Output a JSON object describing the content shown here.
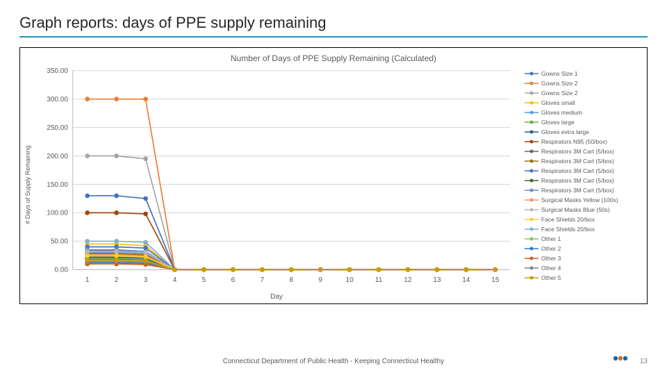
{
  "slide": {
    "title": "Graph reports: days of PPE supply remaining",
    "footer": "Connecticut Department of Public Health - Keeping Connecticut Healthy",
    "page_number": "13",
    "accent_rule_color": "#1e95c3"
  },
  "chart": {
    "type": "line",
    "title": "Number of Days of PPE Supply Remaining (Calculated)",
    "title_fontsize": 12,
    "xlabel": "Day",
    "ylabel": "# Days of Supply Remaining",
    "label_fontsize": 10,
    "background_color": "#ffffff",
    "grid_color": "#d9d9d9",
    "axis_color": "#bfbfbf",
    "x_categories": [
      "1",
      "2",
      "3",
      "4",
      "5",
      "6",
      "7",
      "8",
      "9",
      "10",
      "11",
      "12",
      "13",
      "14",
      "15"
    ],
    "ylim": [
      0,
      350
    ],
    "ytick_step": 50,
    "ytick_format": "0.00",
    "marker_size": 3,
    "line_width": 1.5,
    "series": [
      {
        "name": "Gowns Size 1",
        "color": "#4472c4",
        "values": [
          130,
          130,
          125,
          0,
          0,
          0,
          0,
          0,
          0,
          0,
          0,
          0,
          0,
          0,
          0
        ]
      },
      {
        "name": "Gowns Size 2",
        "color": "#ed7d31",
        "values": [
          300,
          300,
          300,
          0,
          0,
          0,
          0,
          0,
          0,
          0,
          0,
          0,
          0,
          0,
          0
        ]
      },
      {
        "name": "Gowns Size 2",
        "color": "#a5a5a5",
        "values": [
          200,
          200,
          195,
          0,
          0,
          0,
          0,
          0,
          0,
          0,
          0,
          0,
          0,
          0,
          0
        ]
      },
      {
        "name": "Gloves small",
        "color": "#ffc000",
        "values": [
          45,
          45,
          42,
          0,
          0,
          0,
          0,
          0,
          0,
          0,
          0,
          0,
          0,
          0,
          0
        ]
      },
      {
        "name": "Gloves medium",
        "color": "#5b9bd5",
        "values": [
          30,
          30,
          28,
          0,
          0,
          0,
          0,
          0,
          0,
          0,
          0,
          0,
          0,
          0,
          0
        ]
      },
      {
        "name": "Gloves large",
        "color": "#70ad47",
        "values": [
          20,
          20,
          20,
          0,
          0,
          0,
          0,
          0,
          0,
          0,
          0,
          0,
          0,
          0,
          0
        ]
      },
      {
        "name": "Gloves extra large",
        "color": "#255e91",
        "values": [
          22,
          22,
          20,
          0,
          0,
          0,
          0,
          0,
          0,
          0,
          0,
          0,
          0,
          0,
          0
        ]
      },
      {
        "name": "Respirators N95 (50/box)",
        "color": "#9e480e",
        "values": [
          100,
          100,
          98,
          0,
          0,
          0,
          0,
          0,
          0,
          0,
          0,
          0,
          0,
          0,
          0
        ]
      },
      {
        "name": "Respirators 3M Cart (5/box)",
        "color": "#636363",
        "values": [
          33,
          33,
          30,
          0,
          0,
          0,
          0,
          0,
          0,
          0,
          0,
          0,
          0,
          0,
          0
        ]
      },
      {
        "name": "Respirators 3M Cart (5/box)",
        "color": "#997300",
        "values": [
          28,
          28,
          26,
          0,
          0,
          0,
          0,
          0,
          0,
          0,
          0,
          0,
          0,
          0,
          0
        ]
      },
      {
        "name": "Respirators 3M Cart (5/box)",
        "color": "#4472c4",
        "values": [
          40,
          40,
          38,
          0,
          0,
          0,
          0,
          0,
          0,
          0,
          0,
          0,
          0,
          0,
          0
        ]
      },
      {
        "name": "Respirators 3M Cart (5/box)",
        "color": "#43682b",
        "values": [
          18,
          18,
          17,
          0,
          0,
          0,
          0,
          0,
          0,
          0,
          0,
          0,
          0,
          0,
          0
        ]
      },
      {
        "name": "Respirators 3M Cart (5/box)",
        "color": "#698ed0",
        "values": [
          35,
          35,
          32,
          0,
          0,
          0,
          0,
          0,
          0,
          0,
          0,
          0,
          0,
          0,
          0
        ]
      },
      {
        "name": "Surgical Masks Yellow (100s)",
        "color": "#f1975a",
        "values": [
          26,
          26,
          24,
          0,
          0,
          0,
          0,
          0,
          0,
          0,
          0,
          0,
          0,
          0,
          0
        ]
      },
      {
        "name": "Surgical Masks Blue (50s)",
        "color": "#b7b7b7",
        "values": [
          32,
          32,
          30,
          0,
          0,
          0,
          0,
          0,
          0,
          0,
          0,
          0,
          0,
          0,
          0
        ]
      },
      {
        "name": "Face Shields 20/box",
        "color": "#ffcd33",
        "values": [
          24,
          24,
          22,
          0,
          0,
          0,
          0,
          0,
          0,
          0,
          0,
          0,
          0,
          0,
          0
        ]
      },
      {
        "name": "Face Shields 20/box",
        "color": "#7cafdd",
        "values": [
          50,
          50,
          48,
          0,
          0,
          0,
          0,
          0,
          0,
          0,
          0,
          0,
          0,
          0,
          0
        ]
      },
      {
        "name": "Other 1",
        "color": "#8cc168",
        "values": [
          15,
          15,
          14,
          0,
          0,
          0,
          0,
          0,
          0,
          0,
          0,
          0,
          0,
          0,
          0
        ]
      },
      {
        "name": "Other 2",
        "color": "#327dc2",
        "values": [
          12,
          12,
          11,
          0,
          0,
          0,
          0,
          0,
          0,
          0,
          0,
          0,
          0,
          0,
          0
        ]
      },
      {
        "name": "Other 3",
        "color": "#d26012",
        "values": [
          10,
          10,
          9,
          0,
          0,
          0,
          0,
          0,
          0,
          0,
          0,
          0,
          0,
          0,
          0
        ]
      },
      {
        "name": "Other 4",
        "color": "#848484",
        "values": [
          14,
          14,
          13,
          0,
          0,
          0,
          0,
          0,
          0,
          0,
          0,
          0,
          0,
          0,
          0
        ]
      },
      {
        "name": "Other 5",
        "color": "#cc9a00",
        "values": [
          17,
          17,
          16,
          0,
          0,
          0,
          0,
          0,
          0,
          0,
          0,
          0,
          0,
          0,
          0
        ]
      }
    ]
  }
}
